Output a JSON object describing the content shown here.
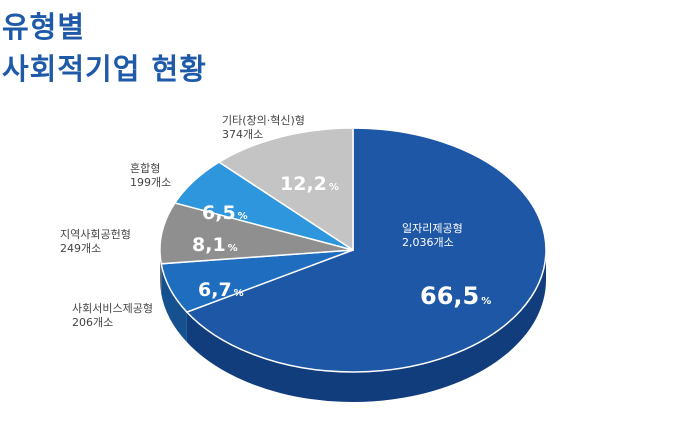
{
  "title_line1": "유형별",
  "title_line2": "사회적기업 현황",
  "chart_data": {
    "type": "pie",
    "title": "유형별 사회적기업 현황",
    "slices": [
      {
        "name": "일자리제공형",
        "count_label": "2,036개소",
        "value": 66.5,
        "color": "#1e57a5",
        "side_color": "#123d7c"
      },
      {
        "name": "사회서비스제공형",
        "count_label": "206개소",
        "value": 6.7,
        "color": "#1f6dbf",
        "side_color": "#15508f"
      },
      {
        "name": "지역사회공헌형",
        "count_label": "249개소",
        "value": 8.1,
        "color": "#8f8f8f",
        "side_color": "#6d6d6d"
      },
      {
        "name": "혼합형",
        "count_label": "199개소",
        "value": 6.5,
        "color": "#2e96dc",
        "side_color": "#1f72ad"
      },
      {
        "name": "기타(창의·혁신)형",
        "count_label": "374개소",
        "value": 12.2,
        "color": "#c4c4c4",
        "side_color": "#9c9c9c"
      }
    ],
    "value_labels": [
      "66,5",
      "6,7",
      "8,1",
      "6,5",
      "12,2"
    ],
    "unit": "%"
  }
}
